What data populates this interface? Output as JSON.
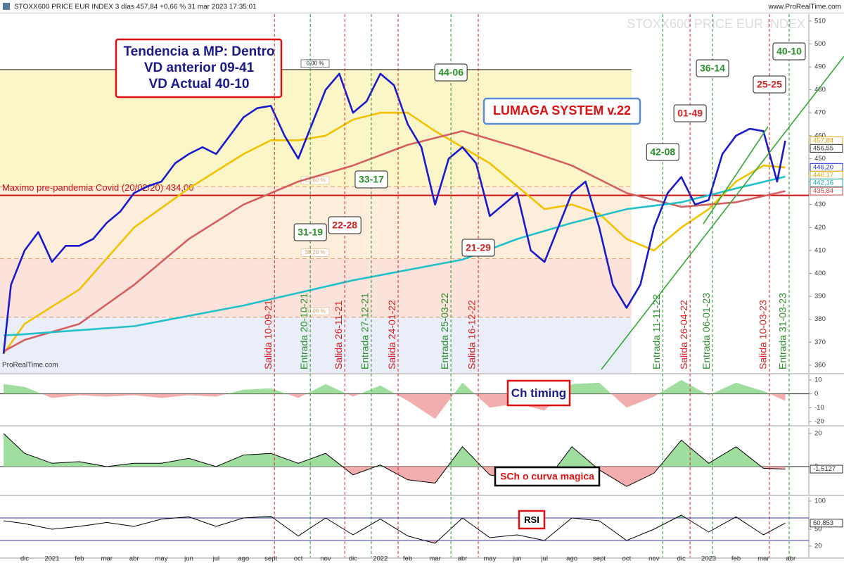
{
  "chart_data": [
    {
      "type": "line",
      "title": "STOXX600 PRICE EUR INDEX 3 días 457,84 +0,66 % 31 mar 2023 17:35:01",
      "source": "www.ProRealTime.com",
      "watermark": "STOXX600 PRICE EUR INDEX",
      "footer": "ProRealTime.com",
      "notes": [
        "Tendencia a MP: Dentro",
        "VD anterior 09-41",
        "VD Actual 40-10"
      ],
      "system_label": "LUMAGA SYSTEM v.22",
      "xlim": [
        -0.9,
        28.66
      ],
      "ylim": [
        356.6,
        513
      ],
      "yticks": [
        360,
        370,
        380,
        390,
        400,
        410,
        420,
        430,
        440,
        450,
        460,
        470,
        480,
        490,
        500,
        510
      ],
      "series": [
        {
          "color": "#f2c200",
          "x": [
            -0.77,
            0,
            2,
            4,
            6,
            8,
            9,
            10,
            11,
            12,
            13,
            14,
            15,
            16,
            17,
            18,
            19,
            20,
            21,
            22,
            23,
            24,
            25,
            26,
            27,
            27.8
          ],
          "values": [
            365,
            378,
            393,
            420,
            437,
            452,
            458,
            458,
            460,
            467,
            470,
            470,
            462,
            455,
            448,
            438,
            428,
            430,
            426,
            415,
            410,
            420,
            428,
            440,
            447,
            446.17
          ]
        },
        {
          "color": "#d45f5f",
          "x": [
            -0.77,
            0,
            2,
            4,
            6,
            8,
            10,
            12,
            14,
            16,
            18,
            20,
            22,
            24,
            26,
            27.8
          ],
          "values": [
            366,
            371,
            378,
            395,
            415,
            430,
            440,
            447,
            456,
            462,
            455,
            447,
            435,
            429,
            431,
            435.84
          ]
        },
        {
          "color": "#22c0c8",
          "x": [
            -0.77,
            0,
            4,
            8,
            12,
            16,
            18,
            20,
            22,
            24,
            26,
            27.8
          ],
          "values": [
            373,
            373.5,
            377,
            386,
            397,
            406,
            415,
            422,
            428,
            431,
            437,
            442.16
          ]
        },
        {
          "color": "#1a1acc",
          "x": [
            -0.77,
            -0.5,
            0,
            0.5,
            1,
            1.5,
            2,
            2.5,
            3,
            3.5,
            4,
            4.5,
            5,
            5.5,
            6,
            6.5,
            7,
            7.5,
            8,
            8.5,
            9,
            9.5,
            10,
            10.5,
            11,
            11.5,
            12,
            12.5,
            13,
            13.5,
            14,
            14.5,
            15,
            15.5,
            16,
            16.5,
            17,
            17.5,
            18,
            18.5,
            19,
            19.5,
            20,
            20.5,
            21,
            21.5,
            22,
            22.5,
            23,
            23.5,
            24,
            24.5,
            25,
            25.5,
            26,
            26.5,
            27,
            27.5,
            27.8
          ],
          "values": [
            365,
            395,
            410,
            418,
            405,
            412,
            412,
            415,
            422,
            427,
            435,
            438,
            440,
            448,
            452,
            455,
            452,
            460,
            468,
            472,
            473,
            460,
            450,
            465,
            480,
            487,
            470,
            475,
            487,
            482,
            465,
            455,
            430,
            450,
            455,
            448,
            425,
            430,
            435,
            410,
            405,
            420,
            435,
            440,
            420,
            395,
            385,
            395,
            420,
            435,
            442,
            430,
            432,
            452,
            460,
            463,
            462,
            440,
            457.84
          ]
        }
      ],
      "fib": [
        {
          "value": 488.8,
          "label": "0,00 %"
        },
        {
          "value": 437.9,
          "label": "23,60 %"
        },
        {
          "value": 406.4,
          "label": "38,20 %"
        },
        {
          "value": 380.9,
          "label": "50,00 %"
        }
      ],
      "levels": [
        {
          "value": 434,
          "label": "Maximo pre-pandemia Covid (20/02/20) 434,00",
          "color": "#cc1111"
        }
      ],
      "signals": [
        {
          "x": 9.13,
          "label": "Salida 10-09-21",
          "color": "#d42020"
        },
        {
          "x": 10.44,
          "label": "Entrada 20-10-21",
          "color": "#2a8f2a",
          "score": "31-19"
        },
        {
          "x": 11.7,
          "label": "Salida 26-11-21",
          "color": "#d42020",
          "score": "22-28"
        },
        {
          "x": 12.67,
          "label": "Entrada 27-12-21",
          "color": "#2a8f2a",
          "score": "33-17"
        },
        {
          "x": 13.65,
          "label": "Salida 24-01-22",
          "color": "#d42020"
        },
        {
          "x": 15.58,
          "label": "Entrada 25-03-22",
          "color": "#2a8f2a",
          "score": "44-06"
        },
        {
          "x": 16.58,
          "label": "Salida 16-12-22",
          "color": "#d42020",
          "score": "21-29"
        },
        {
          "x": 23.32,
          "label": "Entrada 11-11-22",
          "color": "#2a8f2a",
          "score": "42-08"
        },
        {
          "x": 24.32,
          "label": "Salida 26-04-22",
          "color": "#d42020",
          "score": "01-49"
        },
        {
          "x": 25.14,
          "label": "Entrada 06-01-23",
          "color": "#2a8f2a",
          "score": "36-14"
        },
        {
          "x": 27.22,
          "label": "Salida 10-03-23",
          "color": "#d42020",
          "score": "25-25"
        },
        {
          "x": 27.94,
          "label": "Entrada 31-03-23",
          "color": "#2a8f2a",
          "score": "40-10"
        }
      ],
      "value_boxes": [
        {
          "value": 457.84,
          "label": "457,84",
          "color": "#e0a800"
        },
        {
          "value": 456.55,
          "label": "456,55",
          "color": "#333333"
        },
        {
          "value": 446.2,
          "label": "446,20",
          "color": "#2233cc"
        },
        {
          "value": 446.17,
          "label": "446,17",
          "color": "#e0a800"
        },
        {
          "value": 442.16,
          "label": "442,16",
          "color": "#1aa8b0"
        },
        {
          "value": 435.84,
          "label": "435,84",
          "color": "#d04040"
        }
      ]
    },
    {
      "type": "area",
      "title": "Ch timing",
      "xlim": [
        -0.9,
        28.66
      ],
      "ylim": [
        -22.5,
        14
      ],
      "yticks": [
        10,
        0,
        -10,
        -20
      ],
      "baseline": 0,
      "fill_colors": [
        "#8fd88f",
        "#f0a0a0"
      ],
      "x": [
        -0.77,
        0,
        1,
        2,
        3,
        4,
        5,
        6,
        7,
        8,
        9,
        10,
        11,
        12,
        13,
        14,
        15,
        16,
        17,
        18,
        19,
        20,
        21,
        22,
        23,
        24,
        25,
        26,
        27,
        27.8
      ],
      "series": [
        {
          "values": [
            7,
            5,
            -3,
            -1,
            -2,
            -1,
            -3,
            -1,
            -2,
            3,
            4,
            -3,
            7,
            -2,
            6,
            -5,
            -18,
            8,
            -10,
            -7,
            -12,
            7,
            8,
            -10,
            -2,
            10,
            -1,
            8,
            2,
            -5
          ]
        }
      ]
    },
    {
      "type": "area",
      "title": "SCh o curva magica",
      "xlim": [
        -0.9,
        28.66
      ],
      "ylim": [
        -17,
        23.4
      ],
      "yticks": [
        20,
        0
      ],
      "baseline": 0,
      "fill_colors": [
        "#8fd88f",
        "#f0a0a0"
      ],
      "x": [
        -0.77,
        0,
        1,
        2,
        3,
        4,
        5,
        6,
        7,
        8,
        9,
        10,
        11,
        12,
        13,
        14,
        15,
        16,
        17,
        18,
        19,
        20,
        21,
        22,
        23,
        24,
        25,
        26,
        27,
        27.8
      ],
      "series": [
        {
          "color": "#000000",
          "values": [
            20,
            8,
            2,
            3,
            0,
            2,
            2,
            5,
            0,
            7,
            8,
            2,
            8,
            -5,
            1,
            -8,
            -10,
            12,
            -5,
            -8,
            -10,
            12,
            -2,
            -12,
            -4,
            16,
            2,
            12,
            -1,
            -1.5127
          ]
        }
      ],
      "value_boxes": [
        {
          "value": -1.5127,
          "label": "-1,5127",
          "color": "#333333"
        }
      ]
    },
    {
      "type": "line",
      "title": "RSI",
      "xlim": [
        -0.9,
        28.66
      ],
      "ylim": [
        0,
        107.5
      ],
      "yticks": [
        100,
        50,
        20
      ],
      "bands": [
        70,
        30
      ],
      "band_color": "#3a3aa8",
      "fill_colors": [
        "#8fd88f",
        "#f0a0a0"
      ],
      "x": [
        -0.77,
        0,
        1,
        2,
        3,
        4,
        5,
        6,
        7,
        8,
        9,
        10,
        11,
        12,
        13,
        14,
        15,
        16,
        17,
        18,
        19,
        20,
        21,
        22,
        23,
        24,
        25,
        26,
        27,
        27.8
      ],
      "series": [
        {
          "color": "#000000",
          "values": [
            65,
            60,
            50,
            55,
            62,
            55,
            68,
            72,
            55,
            70,
            73,
            38,
            70,
            40,
            68,
            38,
            25,
            70,
            35,
            40,
            30,
            70,
            65,
            30,
            50,
            75,
            45,
            72,
            40,
            60.853
          ]
        }
      ],
      "value_boxes": [
        {
          "value": 60.853,
          "label": "60,853",
          "color": "#333333"
        }
      ],
      "xticks": [
        {
          "value": 0,
          "label": "dic"
        },
        {
          "value": 1,
          "label": "2021"
        },
        {
          "value": 2,
          "label": "feb"
        },
        {
          "value": 3,
          "label": "mar"
        },
        {
          "value": 4,
          "label": "abr"
        },
        {
          "value": 5,
          "label": "may"
        },
        {
          "value": 6,
          "label": "jun"
        },
        {
          "value": 7,
          "label": "jul"
        },
        {
          "value": 8,
          "label": "ago"
        },
        {
          "value": 9,
          "label": "sept"
        },
        {
          "value": 10,
          "label": "oct"
        },
        {
          "value": 11,
          "label": "nov"
        },
        {
          "value": 12,
          "label": "dic"
        },
        {
          "value": 13,
          "label": "2022"
        },
        {
          "value": 14,
          "label": "feb"
        },
        {
          "value": 15,
          "label": "mar"
        },
        {
          "value": 16,
          "label": "abr"
        },
        {
          "value": 17,
          "label": "may"
        },
        {
          "value": 18,
          "label": "jun"
        },
        {
          "value": 19,
          "label": "jul"
        },
        {
          "value": 20,
          "label": "ago"
        },
        {
          "value": 21,
          "label": "sept"
        },
        {
          "value": 22,
          "label": "oct"
        },
        {
          "value": 23,
          "label": "nov"
        },
        {
          "value": 24,
          "label": "dic"
        },
        {
          "value": 25,
          "label": "2023"
        },
        {
          "value": 26,
          "label": "feb"
        },
        {
          "value": 27,
          "label": "mar"
        },
        {
          "value": 28,
          "label": "abr"
        }
      ]
    }
  ]
}
